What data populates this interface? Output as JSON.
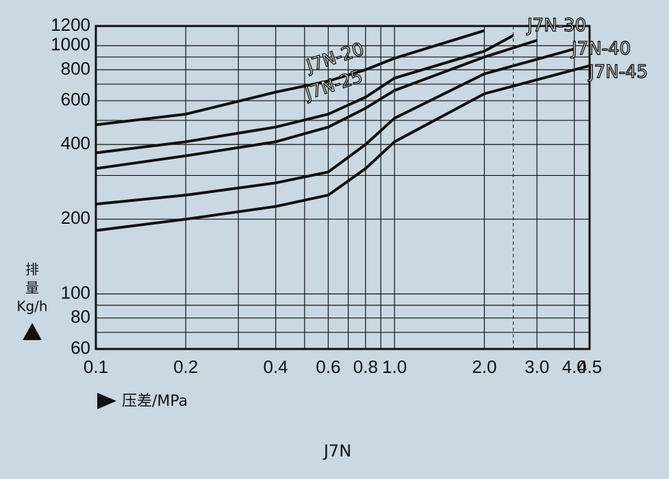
{
  "chart_data": {
    "type": "line",
    "caption": "J7N",
    "xlabel": "压差/MPa",
    "ylabel": [
      "排",
      "量",
      "Kg/h"
    ],
    "log_x": true,
    "log_y": true,
    "xlim": [
      0.1,
      4.5
    ],
    "ylim": [
      60,
      1200
    ],
    "xticks": [
      0.1,
      0.2,
      0.4,
      0.6,
      0.8,
      {
        "value": 1,
        "label": "1.0"
      },
      {
        "value": 2,
        "label": "2.0"
      },
      {
        "value": 3,
        "label": "3.0"
      },
      {
        "value": 4,
        "label": "4.0"
      },
      4.5
    ],
    "xminor": [
      0.3,
      0.5,
      0.7,
      0.9
    ],
    "yticks": [
      60,
      80,
      100,
      200,
      400,
      600,
      800,
      1000,
      1200
    ],
    "yminor": [
      70,
      90,
      300,
      500,
      700,
      900
    ],
    "reference_x": 2.5,
    "grid": true,
    "series": [
      {
        "name": "J7N-20",
        "color": "#111111",
        "x": [
          0.1,
          0.2,
          0.4,
          0.6,
          0.8,
          1.0,
          2.0
        ],
        "values": [
          480,
          530,
          650,
          720,
          800,
          890,
          1150
        ]
      },
      {
        "name": "J7N-25",
        "color": "#111111",
        "x": [
          0.1,
          0.2,
          0.4,
          0.6,
          0.8,
          1.0,
          2.0,
          2.5
        ],
        "values": [
          370,
          410,
          470,
          530,
          620,
          740,
          950,
          1100
        ]
      },
      {
        "name": "J7N-30",
        "color": "#111111",
        "x": [
          0.1,
          0.2,
          0.4,
          0.6,
          0.8,
          1.0,
          2.0,
          3.0
        ],
        "values": [
          320,
          360,
          410,
          470,
          560,
          660,
          900,
          1050
        ]
      },
      {
        "name": "J7N-40",
        "color": "#111111",
        "x": [
          0.1,
          0.2,
          0.4,
          0.6,
          0.8,
          1.0,
          2.0,
          4.0
        ],
        "values": [
          230,
          250,
          280,
          310,
          400,
          510,
          770,
          970
        ]
      },
      {
        "name": "J7N-45",
        "color": "#111111",
        "x": [
          0.1,
          0.2,
          0.4,
          0.6,
          0.8,
          1.0,
          2.0,
          4.5
        ],
        "values": [
          180,
          200,
          225,
          250,
          320,
          410,
          640,
          830
        ]
      }
    ]
  }
}
